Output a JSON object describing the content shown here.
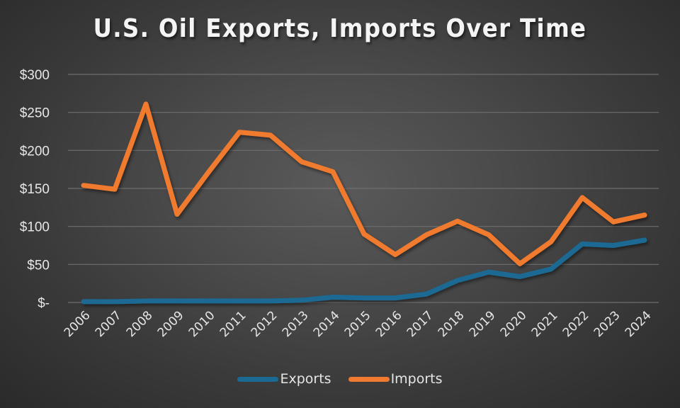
{
  "title": "U.S. Oil Exports, Imports Over Time",
  "colors": {
    "exports": "#1a6a93",
    "imports": "#f07a2f",
    "gridline": "#6e6e6e",
    "text": "#e6e6e6"
  },
  "y_axis": {
    "ticks": [
      "$-",
      "$50",
      "$100",
      "$150",
      "$200",
      "$250",
      "$300"
    ],
    "tick_values": [
      0,
      50,
      100,
      150,
      200,
      250,
      300
    ]
  },
  "x_axis": {
    "ticks": [
      "2006",
      "2007",
      "2008",
      "2009",
      "2010",
      "2011",
      "2012",
      "2013",
      "2014",
      "2015",
      "2016",
      "2017",
      "2018",
      "2019",
      "2020",
      "2021",
      "2022",
      "2023",
      "2024"
    ]
  },
  "legend": {
    "items": [
      {
        "label": "Exports",
        "color": "#1a6a93"
      },
      {
        "label": "Imports",
        "color": "#f07a2f"
      }
    ]
  },
  "chart_data": {
    "type": "line",
    "title": "U.S. Oil Exports, Imports Over Time",
    "xlabel": "",
    "ylabel": "",
    "ylim": [
      0,
      300
    ],
    "grid": true,
    "legend_position": "bottom",
    "x": [
      "2006",
      "2007",
      "2008",
      "2009",
      "2010",
      "2011",
      "2012",
      "2013",
      "2014",
      "2015",
      "2016",
      "2017",
      "2018",
      "2019",
      "2020",
      "2021",
      "2022",
      "2023",
      "2024"
    ],
    "series": [
      {
        "name": "Exports",
        "color": "#1a6a93",
        "values": [
          1,
          1,
          2,
          2,
          2,
          2,
          2,
          3,
          7,
          6,
          6,
          11,
          29,
          40,
          34,
          44,
          77,
          75,
          82
        ]
      },
      {
        "name": "Imports",
        "color": "#f07a2f",
        "values": [
          154,
          149,
          261,
          116,
          171,
          224,
          220,
          185,
          172,
          90,
          63,
          89,
          107,
          89,
          51,
          80,
          138,
          106,
          115
        ]
      }
    ]
  }
}
